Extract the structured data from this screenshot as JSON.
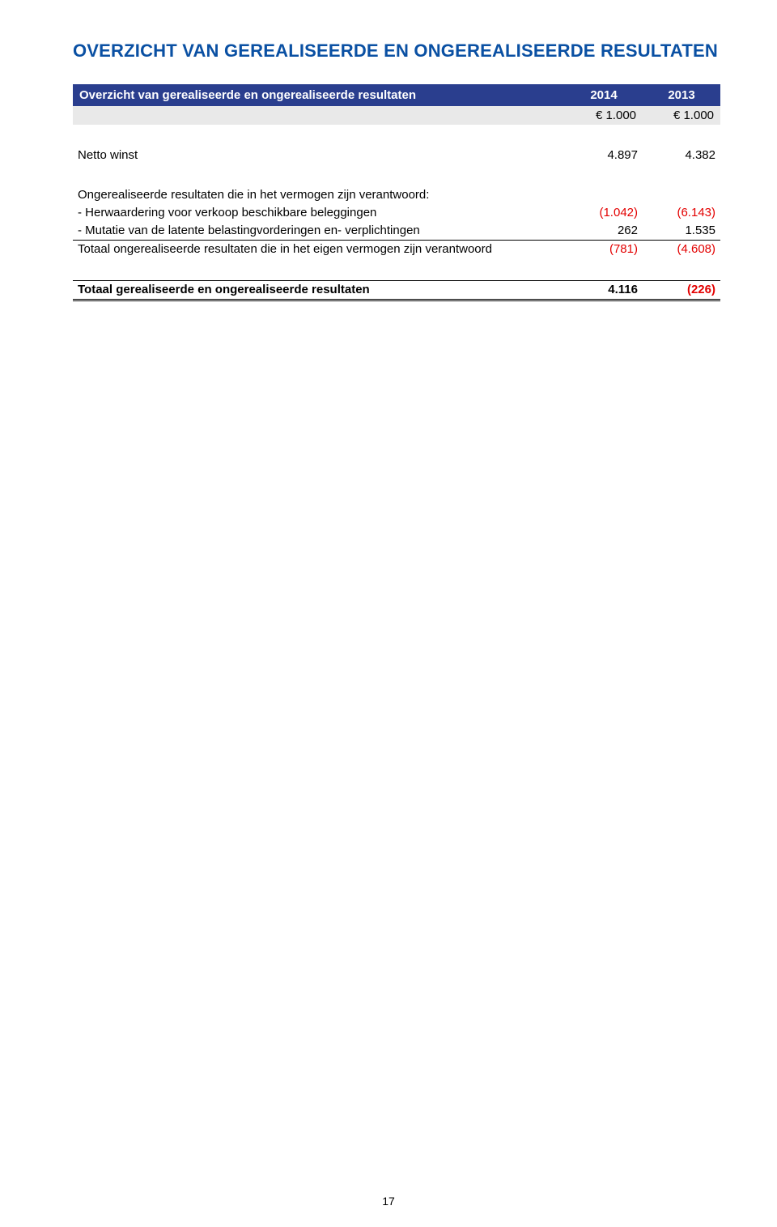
{
  "title": "OVERZICHT VAN GEREALISEERDE EN ONGEREALISEERDE RESULTATEN",
  "header": {
    "label": "Overzicht van gerealiseerde en ongerealiseerde resultaten",
    "col1": "2014",
    "col2": "2013"
  },
  "units": {
    "col1": "€ 1.000",
    "col2": "€ 1.000"
  },
  "rows": {
    "netto": {
      "label": "Netto winst",
      "v1": "4.897",
      "v2": "4.382"
    },
    "sectionIntro": {
      "label": "Ongerealiseerde resultaten die in het vermogen zijn verantwoord:"
    },
    "herw": {
      "label": "- Herwaardering voor verkoop beschikbare beleggingen",
      "v1": "(1.042)",
      "v2": "(6.143)"
    },
    "mutatie": {
      "label": "- Mutatie van de latente belastingvorderingen en- verplichtingen",
      "v1": "262",
      "v2": "1.535"
    },
    "totOngereal": {
      "label": "Totaal ongerealiseerde resultaten die in het eigen vermogen zijn verantwoord",
      "v1": "(781)",
      "v2": "(4.608)"
    },
    "grand": {
      "label": "Totaal gerealiseerde en ongerealiseerde resultaten",
      "v1": "4.116",
      "v2": "(226)"
    }
  },
  "colors": {
    "title": "#0a50a3",
    "headerBg": "#2a3e8e",
    "unitsBg": "#e9e9e9",
    "negative": "#e30000"
  },
  "pageNumber": "17"
}
